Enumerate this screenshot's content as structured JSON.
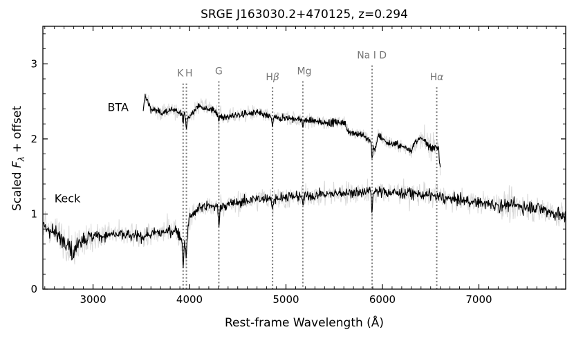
{
  "chart_data": {
    "type": "line",
    "title": "SRGE J163030.2+470125, z=0.294",
    "xlabel": "Rest-frame Wavelength (Å)",
    "ylabel_parts": [
      "Scaled ",
      "F",
      "λ",
      " + offset"
    ],
    "xlim": [
      2480,
      7900
    ],
    "ylim": [
      0,
      3.5
    ],
    "x_ticks": [
      3000,
      4000,
      5000,
      6000,
      7000
    ],
    "x_tick_labels": [
      "3000",
      "4000",
      "5000",
      "6000",
      "7000"
    ],
    "y_ticks": [
      0,
      1,
      2,
      3
    ],
    "y_tick_labels": [
      "0",
      "1",
      "2",
      "3"
    ],
    "grid": false,
    "series": [
      {
        "name": "BTA",
        "x_range": [
          3520,
          6600
        ],
        "label_pos": [
          3150,
          2.42
        ],
        "knots": [
          [
            3520,
            2.35
          ],
          [
            3540,
            2.58
          ],
          [
            3600,
            2.4
          ],
          [
            3700,
            2.35
          ],
          [
            3800,
            2.38
          ],
          [
            3950,
            2.35
          ],
          [
            3990,
            2.28
          ],
          [
            4100,
            2.45
          ],
          [
            4300,
            2.35
          ],
          [
            4350,
            2.28
          ],
          [
            4500,
            2.32
          ],
          [
            4700,
            2.35
          ],
          [
            4860,
            2.28
          ],
          [
            5000,
            2.28
          ],
          [
            5200,
            2.25
          ],
          [
            5400,
            2.22
          ],
          [
            5600,
            2.22
          ],
          [
            5650,
            2.1
          ],
          [
            5800,
            2.05
          ],
          [
            5890,
            1.95
          ],
          [
            5920,
            1.85
          ],
          [
            5960,
            2.05
          ],
          [
            6050,
            1.95
          ],
          [
            6150,
            1.92
          ],
          [
            6250,
            1.88
          ],
          [
            6300,
            1.85
          ],
          [
            6350,
            1.97
          ],
          [
            6400,
            2.0
          ],
          [
            6500,
            1.9
          ],
          [
            6580,
            1.9
          ],
          [
            6590,
            1.7
          ],
          [
            6600,
            1.55
          ]
        ],
        "absorption": [
          [
            3934,
            0.15
          ],
          [
            3968,
            0.2
          ],
          [
            4304,
            0.12
          ],
          [
            4861,
            0.1
          ],
          [
            5175,
            0.08
          ],
          [
            5893,
            0.2
          ]
        ]
      },
      {
        "name": "Keck",
        "x_range": [
          2480,
          7900
        ],
        "label_pos": [
          2600,
          1.2
        ],
        "knots": [
          [
            2480,
            0.85
          ],
          [
            2550,
            0.8
          ],
          [
            2650,
            0.7
          ],
          [
            2750,
            0.6
          ],
          [
            2800,
            0.45
          ],
          [
            2850,
            0.65
          ],
          [
            3000,
            0.7
          ],
          [
            3200,
            0.73
          ],
          [
            3500,
            0.7
          ],
          [
            3700,
            0.75
          ],
          [
            3850,
            0.8
          ],
          [
            3950,
            0.6
          ],
          [
            3980,
            0.75
          ],
          [
            4000,
            0.95
          ],
          [
            4100,
            1.08
          ],
          [
            4200,
            1.1
          ],
          [
            4300,
            1.1
          ],
          [
            4500,
            1.15
          ],
          [
            4700,
            1.2
          ],
          [
            5000,
            1.22
          ],
          [
            5300,
            1.25
          ],
          [
            5600,
            1.28
          ],
          [
            5900,
            1.3
          ],
          [
            6200,
            1.28
          ],
          [
            6500,
            1.25
          ],
          [
            6700,
            1.2
          ],
          [
            7000,
            1.15
          ],
          [
            7200,
            1.12
          ],
          [
            7500,
            1.1
          ],
          [
            7700,
            1.05
          ],
          [
            7900,
            0.95
          ]
        ],
        "absorption": [
          [
            3934,
            0.3
          ],
          [
            3968,
            0.25
          ],
          [
            4304,
            0.25
          ],
          [
            4861,
            0.15
          ],
          [
            5175,
            0.12
          ],
          [
            5893,
            0.3
          ]
        ]
      }
    ],
    "lines": [
      {
        "label_parts": [
          "K"
        ],
        "x": 3934,
        "label_x": 3905,
        "label_y": 2.83
      },
      {
        "label_parts": [
          "H"
        ],
        "x": 3968,
        "label_x": 3995,
        "label_y": 2.83
      },
      {
        "label_parts": [
          "G"
        ],
        "x": 4304,
        "label_x": 4304,
        "label_y": 2.86
      },
      {
        "label_parts": [
          "H",
          "β"
        ],
        "x": 4861,
        "label_x": 4861,
        "label_y": 2.78
      },
      {
        "label_parts": [
          "Mg"
        ],
        "x": 5175,
        "label_x": 5190,
        "label_y": 2.86
      },
      {
        "label_parts": [
          "Na I D"
        ],
        "x": 5893,
        "label_x": 5890,
        "label_y": 3.07
      },
      {
        "label_parts": [
          "H",
          "α"
        ],
        "x": 6563,
        "label_x": 6563,
        "label_y": 2.78
      }
    ]
  }
}
